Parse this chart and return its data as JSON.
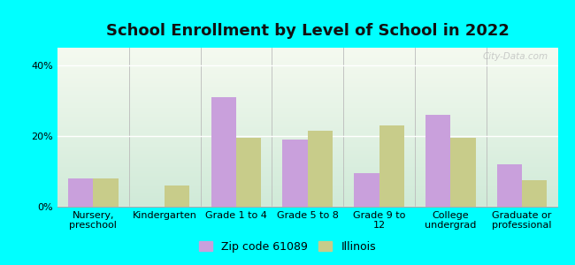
{
  "title": "School Enrollment by Level of School in 2022",
  "categories": [
    "Nursery,\npreschool",
    "Kindergarten",
    "Grade 1 to 4",
    "Grade 5 to 8",
    "Grade 9 to\n12",
    "College\nundergrad",
    "Graduate or\nprofessional"
  ],
  "zip_values": [
    8.0,
    0.0,
    31.0,
    19.0,
    9.5,
    26.0,
    12.0
  ],
  "il_values": [
    8.0,
    6.0,
    19.5,
    21.5,
    23.0,
    19.5,
    7.5
  ],
  "zip_color": "#c9a0dc",
  "il_color": "#c8cc8a",
  "background_outer": "#00ffff",
  "ylim": [
    0,
    45
  ],
  "yticks": [
    0,
    20,
    40
  ],
  "ytick_labels": [
    "0%",
    "20%",
    "40%"
  ],
  "legend_label_zip": "Zip code 61089",
  "legend_label_il": "Illinois",
  "title_fontsize": 13,
  "tick_fontsize": 8,
  "legend_fontsize": 9,
  "bar_width": 0.35,
  "watermark": "City-Data.com"
}
